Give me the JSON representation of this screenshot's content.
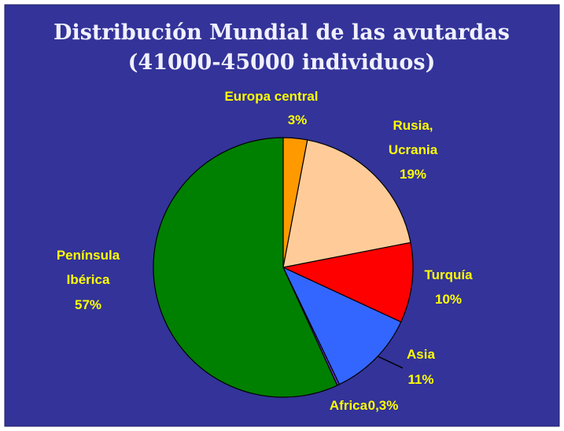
{
  "chart_data": {
    "type": "pie",
    "title": "Distribución Mundial de las avutardas",
    "subtitle": "(41000-45000 individuos)",
    "categories": [
      "Europa central",
      "Rusia, Ucrania",
      "Turquía",
      "Asia",
      "Africa",
      "Península Ibérica"
    ],
    "values": [
      3,
      19,
      10,
      11,
      0.3,
      57
    ],
    "value_labels": [
      "3%",
      "19%",
      "10%",
      "11%",
      "0,3%",
      "57%"
    ],
    "colors": [
      "#ff9900",
      "#ffcc99",
      "#ff0000",
      "#3366ff",
      "#6633cc",
      "#008000"
    ]
  }
}
